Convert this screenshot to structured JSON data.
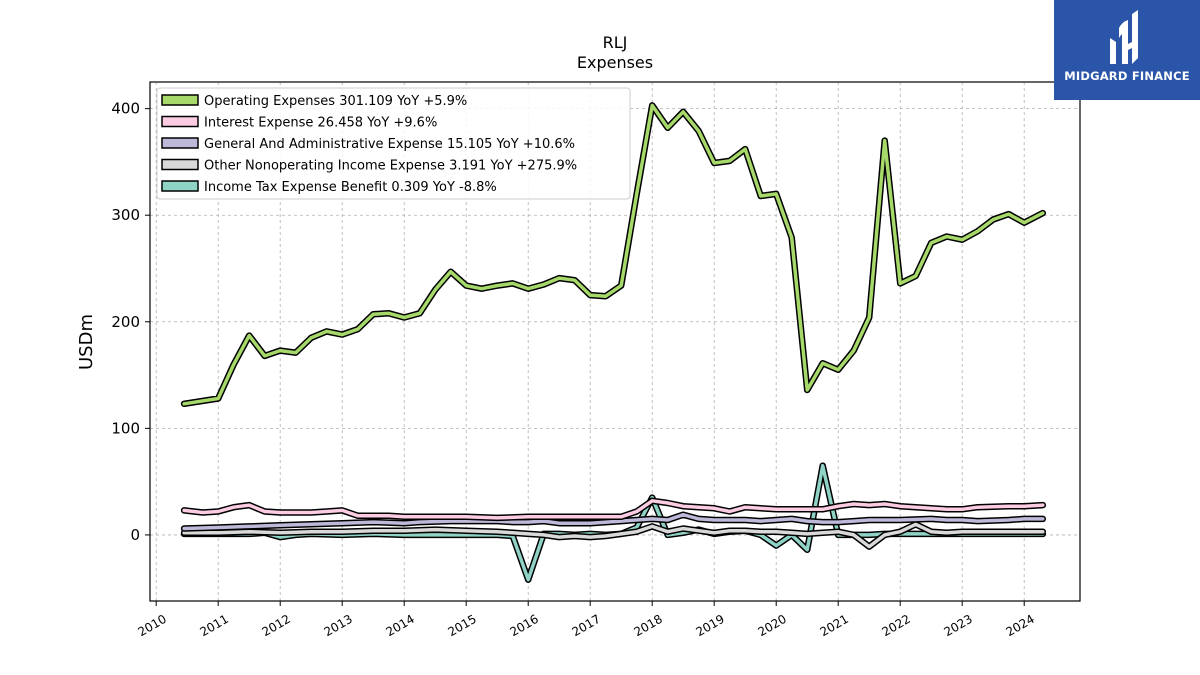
{
  "brand": {
    "name": "MIDGARD FINANCE"
  },
  "chart_data": {
    "type": "line",
    "title": "RLJ",
    "subtitle": "Expenses",
    "xlabel": "",
    "ylabel": "USDm",
    "xlim": [
      2009.9,
      2024.9
    ],
    "ylim": [
      -62,
      425
    ],
    "yticks": [
      0,
      100,
      200,
      300,
      400
    ],
    "xticks": [
      "2010",
      "2011",
      "2012",
      "2013",
      "2014",
      "2015",
      "2016",
      "2017",
      "2018",
      "2019",
      "2020",
      "2021",
      "2022",
      "2023",
      "2024"
    ],
    "grid": true,
    "legend_position": "top-left",
    "series": [
      {
        "name": "Operating Expenses  301.109 YoY +5.9%",
        "color": "#a6d96a",
        "points": [
          [
            2010.45,
            123
          ],
          [
            2011.0,
            128
          ],
          [
            2011.25,
            160
          ],
          [
            2011.5,
            187
          ],
          [
            2011.75,
            168
          ],
          [
            2012.0,
            173
          ],
          [
            2012.25,
            171
          ],
          [
            2012.5,
            185
          ],
          [
            2012.75,
            191
          ],
          [
            2013.0,
            188
          ],
          [
            2013.25,
            193
          ],
          [
            2013.5,
            207
          ],
          [
            2013.75,
            208
          ],
          [
            2014.0,
            204
          ],
          [
            2014.25,
            208
          ],
          [
            2014.5,
            230
          ],
          [
            2014.75,
            247
          ],
          [
            2015.0,
            234
          ],
          [
            2015.25,
            231
          ],
          [
            2015.5,
            234
          ],
          [
            2015.75,
            236
          ],
          [
            2016.0,
            231
          ],
          [
            2016.25,
            235
          ],
          [
            2016.5,
            241
          ],
          [
            2016.75,
            239
          ],
          [
            2017.0,
            225
          ],
          [
            2017.25,
            224
          ],
          [
            2017.5,
            234
          ],
          [
            2017.75,
            320
          ],
          [
            2018.0,
            403
          ],
          [
            2018.25,
            382
          ],
          [
            2018.5,
            397
          ],
          [
            2018.75,
            379
          ],
          [
            2019.0,
            349
          ],
          [
            2019.25,
            351
          ],
          [
            2019.5,
            362
          ],
          [
            2019.75,
            318
          ],
          [
            2020.0,
            320
          ],
          [
            2020.25,
            279
          ],
          [
            2020.5,
            136
          ],
          [
            2020.75,
            161
          ],
          [
            2021.0,
            155
          ],
          [
            2021.25,
            173
          ],
          [
            2021.5,
            204
          ],
          [
            2021.75,
            370
          ],
          [
            2022.0,
            236
          ],
          [
            2022.25,
            243
          ],
          [
            2022.5,
            274
          ],
          [
            2022.75,
            280
          ],
          [
            2023.0,
            277
          ],
          [
            2023.25,
            285
          ],
          [
            2023.5,
            296
          ],
          [
            2023.75,
            301
          ],
          [
            2024.0,
            293
          ],
          [
            2024.3,
            302
          ]
        ]
      },
      {
        "name": "Interest Expense  26.458 YoY +9.6%",
        "color": "#fbcce2",
        "points": [
          [
            2010.45,
            23
          ],
          [
            2010.75,
            21
          ],
          [
            2011.0,
            22
          ],
          [
            2011.25,
            26
          ],
          [
            2011.5,
            28
          ],
          [
            2011.75,
            22
          ],
          [
            2012.0,
            21
          ],
          [
            2012.5,
            21
          ],
          [
            2012.75,
            22
          ],
          [
            2013.0,
            23
          ],
          [
            2013.25,
            18
          ],
          [
            2013.75,
            18
          ],
          [
            2014.0,
            17
          ],
          [
            2014.5,
            17
          ],
          [
            2015.0,
            17
          ],
          [
            2015.5,
            16
          ],
          [
            2016.0,
            17
          ],
          [
            2016.5,
            17
          ],
          [
            2017.0,
            17
          ],
          [
            2017.5,
            17
          ],
          [
            2017.75,
            22
          ],
          [
            2018.0,
            32
          ],
          [
            2018.25,
            30
          ],
          [
            2018.5,
            27
          ],
          [
            2018.75,
            26
          ],
          [
            2019.0,
            25
          ],
          [
            2019.25,
            22
          ],
          [
            2019.5,
            26
          ],
          [
            2019.75,
            25
          ],
          [
            2020.0,
            24
          ],
          [
            2020.5,
            24
          ],
          [
            2020.75,
            24
          ],
          [
            2021.0,
            27
          ],
          [
            2021.25,
            29
          ],
          [
            2021.5,
            28
          ],
          [
            2021.75,
            29
          ],
          [
            2022.0,
            27
          ],
          [
            2022.5,
            25
          ],
          [
            2022.75,
            24
          ],
          [
            2023.0,
            24
          ],
          [
            2023.25,
            26
          ],
          [
            2023.75,
            27
          ],
          [
            2024.0,
            27
          ],
          [
            2024.3,
            28
          ]
        ]
      },
      {
        "name": "General And Administrative Expense  15.105 YoY +10.6%",
        "color": "#bcb9d9",
        "points": [
          [
            2010.45,
            6
          ],
          [
            2011.0,
            7
          ],
          [
            2011.5,
            8
          ],
          [
            2012.0,
            9
          ],
          [
            2012.5,
            10
          ],
          [
            2013.0,
            11
          ],
          [
            2013.5,
            12
          ],
          [
            2014.0,
            11
          ],
          [
            2014.25,
            12
          ],
          [
            2014.75,
            13
          ],
          [
            2015.0,
            13
          ],
          [
            2015.5,
            13
          ],
          [
            2015.75,
            12
          ],
          [
            2016.0,
            12
          ],
          [
            2016.25,
            13
          ],
          [
            2016.5,
            11
          ],
          [
            2016.75,
            11
          ],
          [
            2017.0,
            11
          ],
          [
            2017.5,
            13
          ],
          [
            2017.75,
            14
          ],
          [
            2018.0,
            15
          ],
          [
            2018.25,
            14
          ],
          [
            2018.5,
            19
          ],
          [
            2018.75,
            15
          ],
          [
            2019.0,
            14
          ],
          [
            2019.25,
            14
          ],
          [
            2019.5,
            14
          ],
          [
            2019.75,
            13
          ],
          [
            2020.0,
            14
          ],
          [
            2020.25,
            15
          ],
          [
            2020.5,
            13
          ],
          [
            2020.75,
            12
          ],
          [
            2021.0,
            12
          ],
          [
            2021.25,
            13
          ],
          [
            2021.5,
            14
          ],
          [
            2021.75,
            14
          ],
          [
            2022.0,
            14
          ],
          [
            2022.5,
            15
          ],
          [
            2022.75,
            14
          ],
          [
            2023.0,
            14
          ],
          [
            2023.25,
            13
          ],
          [
            2023.75,
            14
          ],
          [
            2024.0,
            15
          ],
          [
            2024.3,
            15
          ]
        ]
      },
      {
        "name": "Other Nonoperating Income Expense  3.191 YoY +275.9%",
        "color": "#d9d9d9",
        "points": [
          [
            2010.45,
            2
          ],
          [
            2011.0,
            2
          ],
          [
            2011.5,
            3
          ],
          [
            2012.0,
            2
          ],
          [
            2012.5,
            3
          ],
          [
            2013.0,
            3
          ],
          [
            2013.5,
            4
          ],
          [
            2014.0,
            4
          ],
          [
            2014.5,
            5
          ],
          [
            2015.0,
            4
          ],
          [
            2015.5,
            3
          ],
          [
            2015.75,
            2
          ],
          [
            2016.0,
            1
          ],
          [
            2016.25,
            0
          ],
          [
            2016.5,
            -2
          ],
          [
            2016.75,
            -1
          ],
          [
            2017.0,
            -2
          ],
          [
            2017.25,
            -1
          ],
          [
            2017.5,
            1
          ],
          [
            2017.75,
            3
          ],
          [
            2018.0,
            8
          ],
          [
            2018.25,
            3
          ],
          [
            2018.5,
            6
          ],
          [
            2018.75,
            4
          ],
          [
            2019.0,
            2
          ],
          [
            2019.25,
            4
          ],
          [
            2019.5,
            4
          ],
          [
            2019.75,
            3
          ],
          [
            2020.0,
            3
          ],
          [
            2020.25,
            2
          ],
          [
            2020.5,
            1
          ],
          [
            2020.75,
            2
          ],
          [
            2021.0,
            3
          ],
          [
            2021.25,
            0
          ],
          [
            2021.5,
            -11
          ],
          [
            2021.75,
            0
          ],
          [
            2022.0,
            3
          ],
          [
            2022.25,
            10
          ],
          [
            2022.5,
            3
          ],
          [
            2022.75,
            2
          ],
          [
            2023.0,
            3
          ],
          [
            2023.5,
            3
          ],
          [
            2024.0,
            3
          ],
          [
            2024.3,
            3
          ]
        ]
      },
      {
        "name": "Income Tax Expense Benefit  0.309 YoY -8.8%",
        "color": "#8fd3c6",
        "points": [
          [
            2010.45,
            1
          ],
          [
            2011.0,
            1
          ],
          [
            2011.5,
            1
          ],
          [
            2011.75,
            2
          ],
          [
            2012.0,
            -2
          ],
          [
            2012.25,
            0
          ],
          [
            2012.5,
            1
          ],
          [
            2013.0,
            0
          ],
          [
            2013.5,
            1
          ],
          [
            2014.0,
            0
          ],
          [
            2014.5,
            0
          ],
          [
            2015.0,
            0
          ],
          [
            2015.5,
            0
          ],
          [
            2015.75,
            -1
          ],
          [
            2016.0,
            -42
          ],
          [
            2016.25,
            1
          ],
          [
            2016.5,
            1
          ],
          [
            2016.75,
            0
          ],
          [
            2017.0,
            1
          ],
          [
            2017.25,
            0
          ],
          [
            2017.5,
            1
          ],
          [
            2017.75,
            7
          ],
          [
            2018.0,
            35
          ],
          [
            2018.25,
            0
          ],
          [
            2018.5,
            2
          ],
          [
            2018.75,
            5
          ],
          [
            2019.0,
            1
          ],
          [
            2019.25,
            3
          ],
          [
            2019.5,
            4
          ],
          [
            2019.75,
            0
          ],
          [
            2020.0,
            -10
          ],
          [
            2020.25,
            0
          ],
          [
            2020.5,
            -14
          ],
          [
            2020.75,
            65
          ],
          [
            2021.0,
            0
          ],
          [
            2021.5,
            0
          ],
          [
            2021.75,
            1
          ],
          [
            2022.0,
            1
          ],
          [
            2022.5,
            1
          ],
          [
            2023.0,
            1
          ],
          [
            2023.5,
            1
          ],
          [
            2024.0,
            1
          ],
          [
            2024.3,
            1
          ]
        ]
      }
    ]
  }
}
